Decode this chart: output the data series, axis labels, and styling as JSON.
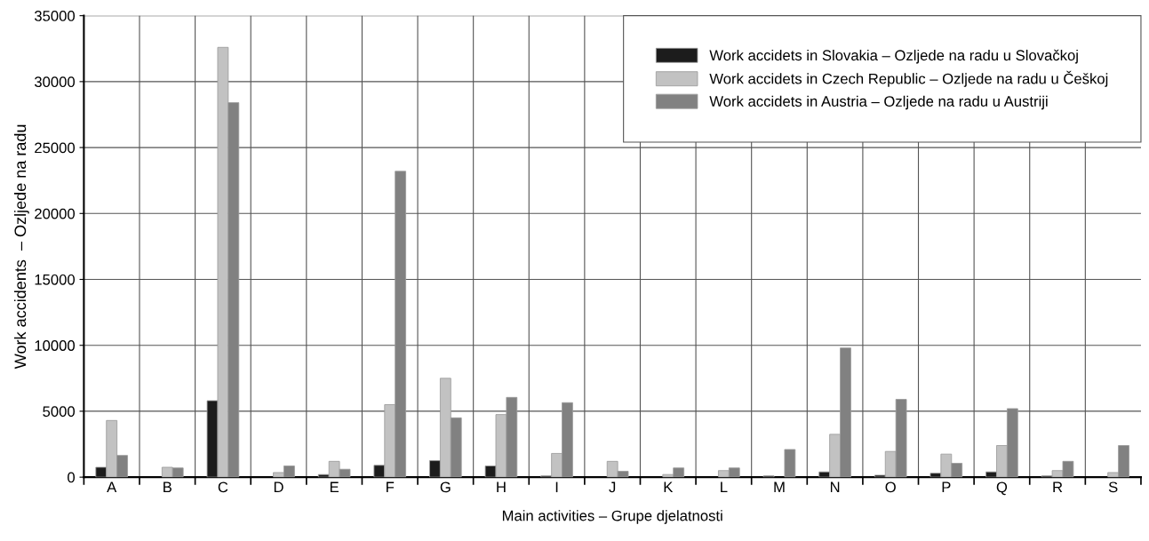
{
  "chart_data": {
    "type": "bar",
    "xlabel": "Main activities – Grupe djelatnosti",
    "ylabel": "Work accidents  – Ozljede na radu",
    "categories": [
      "A",
      "B",
      "C",
      "D",
      "E",
      "F",
      "G",
      "H",
      "I",
      "J",
      "K",
      "L",
      "M",
      "N",
      "O",
      "P",
      "Q",
      "R",
      "S"
    ],
    "series": [
      {
        "name": "Work accidets in Slovakia – Ozljede na radu u Slovačkoj",
        "color": "#1c1c1c",
        "values": [
          750,
          null,
          5800,
          null,
          200,
          900,
          1250,
          850,
          100,
          null,
          null,
          null,
          100,
          400,
          150,
          300,
          400,
          100,
          null
        ]
      },
      {
        "name": "Work accidets in Czech Republic – Ozljede na radu u Češkoj",
        "color": "#c2c2c2",
        "values": [
          4300,
          750,
          32600,
          350,
          1200,
          5500,
          7500,
          4750,
          1800,
          1200,
          200,
          500,
          null,
          3250,
          1950,
          1750,
          2400,
          500,
          350
        ]
      },
      {
        "name": "Work accidets in Austria – Ozljede na radu u Austriji",
        "color": "#818181",
        "values": [
          1650,
          700,
          28400,
          850,
          600,
          23200,
          4500,
          6050,
          5650,
          450,
          700,
          700,
          2100,
          9800,
          5900,
          1050,
          5200,
          1200,
          2400
        ]
      }
    ],
    "ylim": [
      0,
      35000
    ],
    "yticks": [
      0,
      5000,
      10000,
      15000,
      20000,
      25000,
      30000,
      35000
    ],
    "grid": true,
    "legend": "top right"
  }
}
